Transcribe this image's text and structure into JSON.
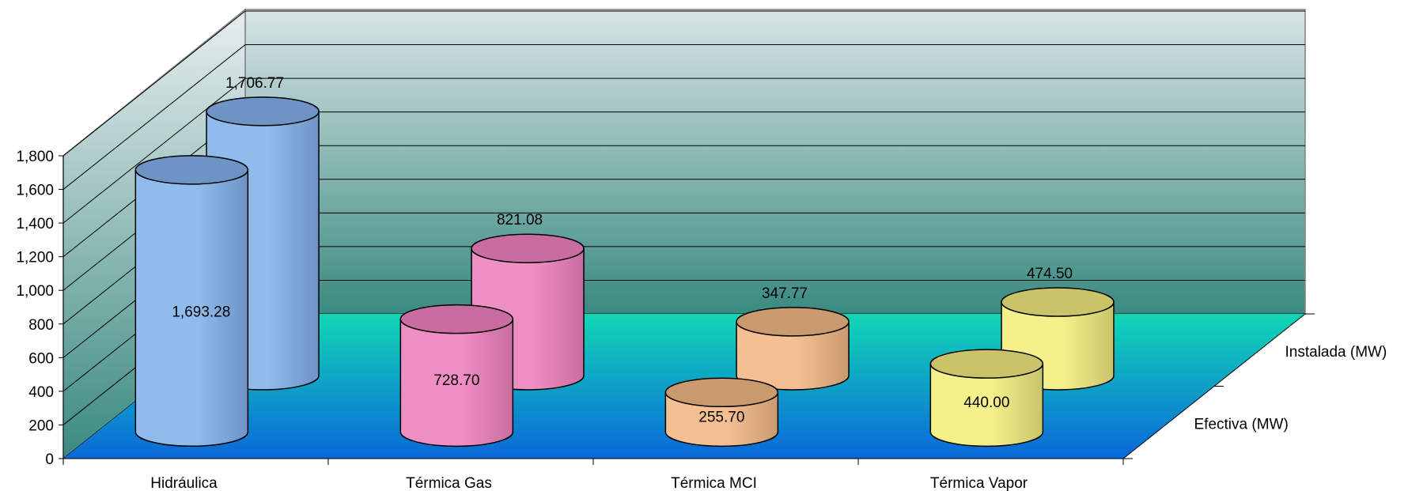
{
  "chart_data": {
    "type": "bar",
    "style": "3d-cylinder",
    "categories": [
      "Hidráulica",
      "Térmica Gas",
      "Térmica MCI",
      "Térmica Vapor"
    ],
    "series": [
      {
        "name": "Efectiva  (MW)",
        "values": [
          1693.28,
          728.7,
          255.7,
          440.0
        ],
        "labels": [
          "1,693.28",
          "728.70",
          "255.70",
          "440.00"
        ]
      },
      {
        "name": "Instalada (MW)",
        "values": [
          1706.77,
          821.08,
          347.77,
          474.5
        ],
        "labels": [
          "1,706.77",
          "821.08",
          "347.77",
          "474.50"
        ]
      }
    ],
    "ylim": [
      0,
      1800
    ],
    "yticks": [
      "0",
      "200",
      "400",
      "600",
      "800",
      "1,000",
      "1,200",
      "1,400",
      "1,600",
      "1,800"
    ],
    "grid": true,
    "colors": {
      "category": [
        "#8fbcec",
        "#ee8fc4",
        "#f4bf92",
        "#f4f08a"
      ],
      "category_top": [
        "#6e93c6",
        "#c96c9f",
        "#c99a6e",
        "#c9c46a"
      ],
      "wall_top": "#d8e4e6",
      "wall_bottom": "#3a8a80",
      "floor_back": "#11d7b5",
      "floor_front": "#0a68d9"
    }
  }
}
